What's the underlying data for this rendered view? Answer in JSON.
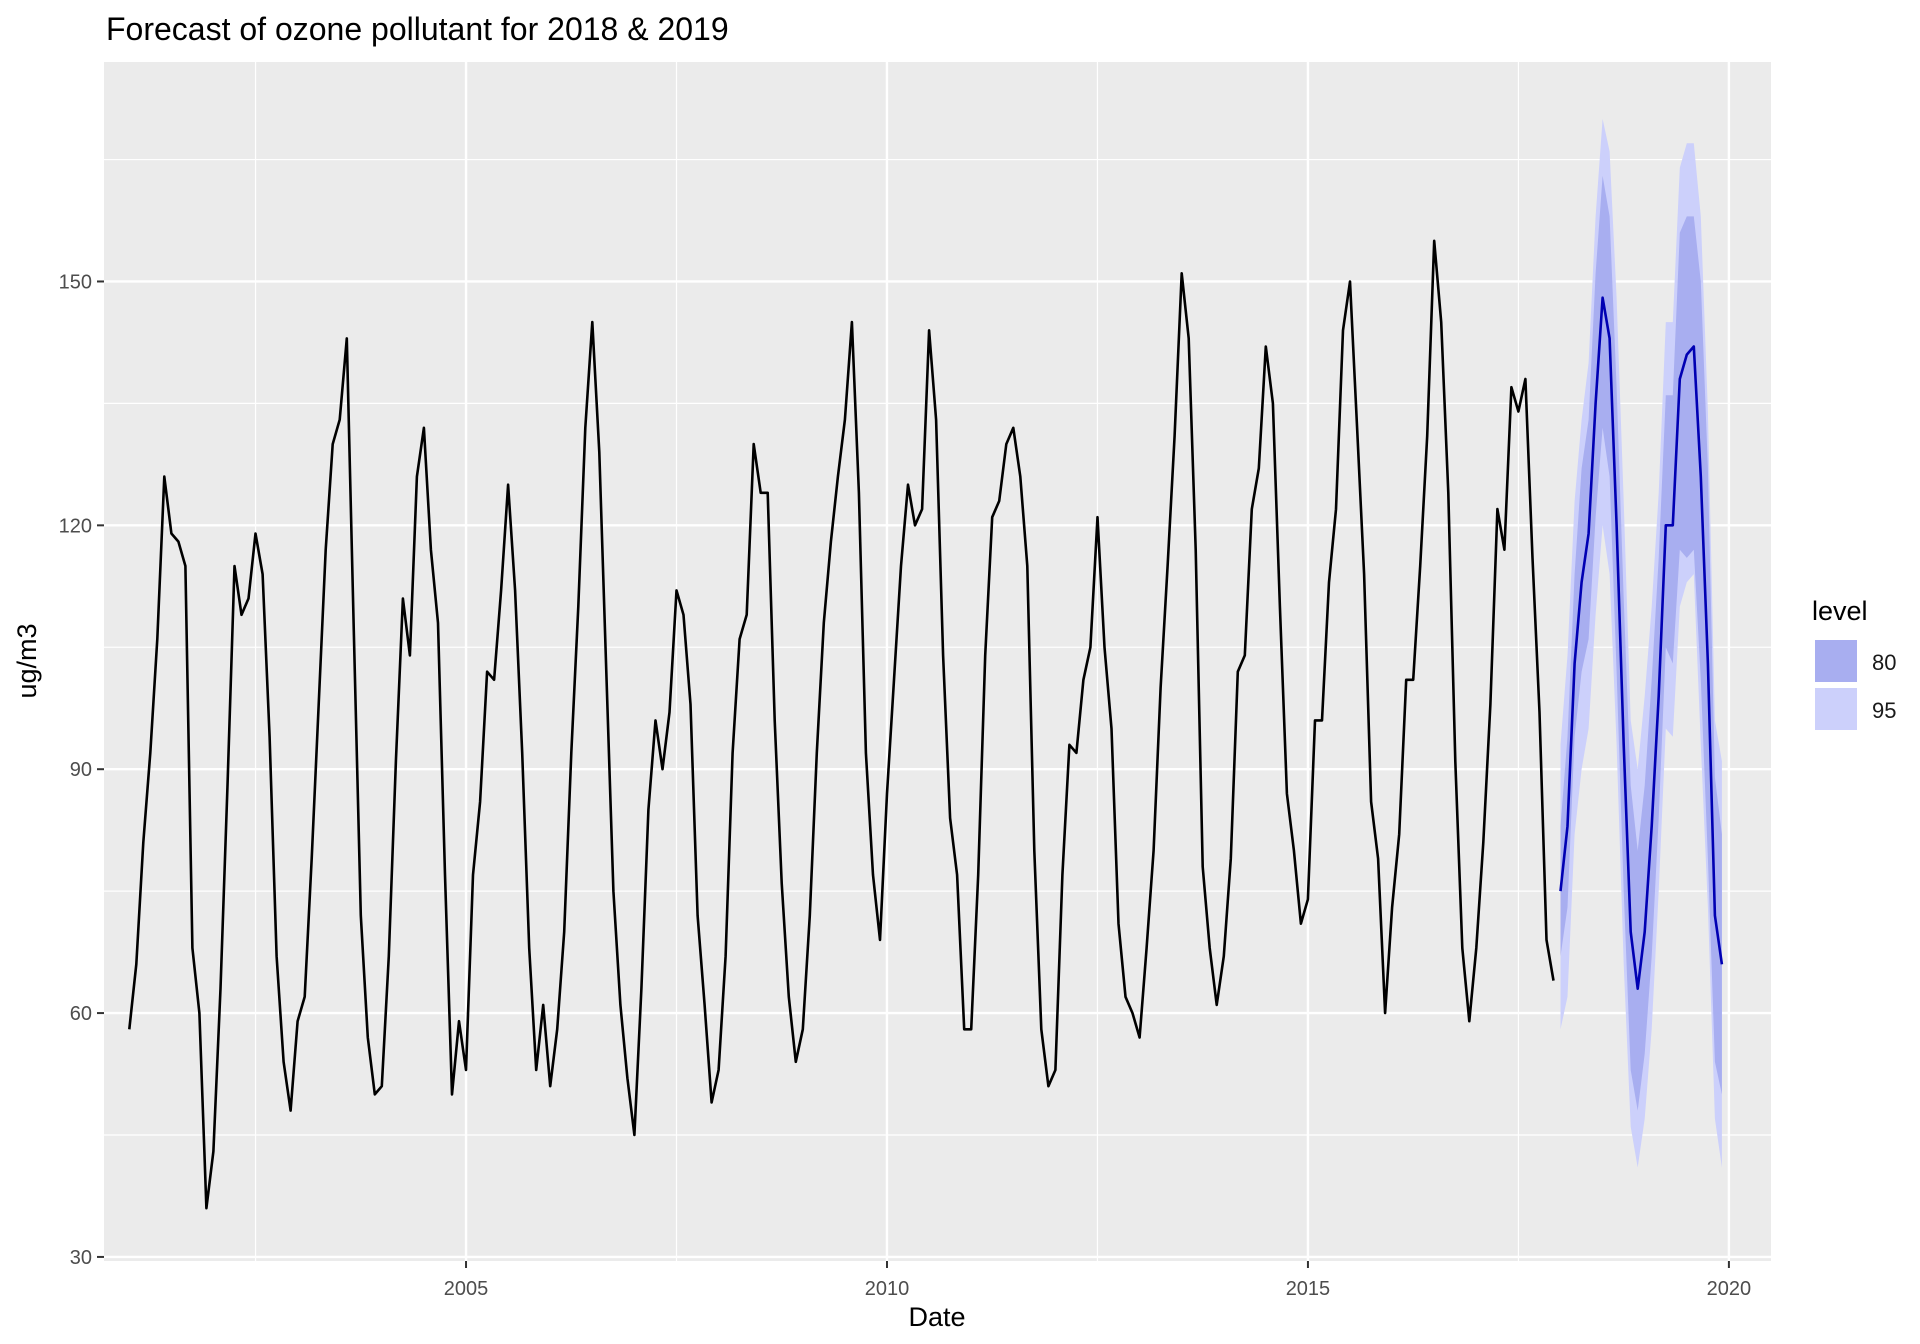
{
  "chart_data": {
    "type": "line",
    "title": "Forecast of ozone pollutant for 2018 & 2019",
    "xlabel": "Date",
    "ylabel": "ug/m3",
    "xlim": [
      2000.7,
      2020.5
    ],
    "ylim": [
      29.5,
      177
    ],
    "x_ticks": [
      2005,
      2010,
      2015,
      2020
    ],
    "x_tick_labels": [
      "2005",
      "2010",
      "2015",
      "2020"
    ],
    "y_ticks": [
      30,
      60,
      90,
      120,
      150
    ],
    "y_tick_labels": [
      "30",
      "60",
      "90",
      "120",
      "150"
    ],
    "grid": true,
    "legend": {
      "title": "level",
      "position": "right",
      "entries": [
        {
          "label": "80",
          "color": "#a8aef0"
        },
        {
          "label": "95",
          "color": "#ccd0fb"
        }
      ]
    },
    "colors": {
      "panel": "#ebebeb",
      "grid_major": "#ffffff",
      "history": "#000000",
      "forecast": "#0000b3",
      "band80": "#a8aef0",
      "band95": "#ccd0fb"
    },
    "history": {
      "start": "2001-01",
      "frequency": "monthly",
      "values": [
        58,
        66,
        81,
        92,
        106,
        126,
        119,
        118,
        115,
        68,
        60,
        36,
        43,
        63,
        88,
        115,
        109,
        111,
        119,
        114,
        94,
        67,
        54,
        48,
        59,
        62,
        79,
        98,
        117,
        130,
        133,
        143,
        107,
        72,
        57,
        50,
        51,
        67,
        91,
        111,
        104,
        126,
        132,
        117,
        108,
        77,
        50,
        59,
        53,
        77,
        86,
        102,
        101,
        112,
        125,
        112,
        92,
        68,
        53,
        61,
        51,
        58,
        70,
        92,
        110,
        132,
        145,
        129,
        102,
        75,
        61,
        52,
        45,
        63,
        85,
        96,
        90,
        97,
        112,
        109,
        98,
        72,
        61,
        49,
        53,
        67,
        92,
        106,
        109,
        130,
        124,
        124,
        96,
        76,
        62,
        54,
        58,
        72,
        92,
        108,
        118,
        126,
        133,
        145,
        124,
        92,
        77,
        69,
        87,
        101,
        115,
        125,
        120,
        122,
        144,
        133,
        104,
        84,
        77,
        58,
        58,
        77,
        104,
        121,
        123,
        130,
        132,
        126,
        115,
        80,
        58,
        51,
        53,
        77,
        93,
        92,
        101,
        105,
        121,
        105,
        95,
        71,
        62,
        60,
        57,
        68,
        80,
        100,
        115,
        131,
        151,
        143,
        117,
        78,
        68,
        61,
        67,
        79,
        102,
        104,
        122,
        127,
        142,
        135,
        110,
        87,
        80,
        71,
        74,
        96,
        96,
        113,
        122,
        144,
        150,
        132,
        114,
        86,
        79,
        60,
        73,
        82,
        101,
        101,
        115,
        131,
        155,
        145,
        124,
        91,
        68,
        59,
        68,
        81,
        98,
        122,
        117,
        137,
        134,
        138,
        116,
        97,
        69,
        64
      ]
    },
    "forecast": {
      "start": "2018-01",
      "frequency": "monthly",
      "mean": [
        75,
        83,
        103,
        113,
        119,
        135,
        148,
        143,
        120,
        93,
        70,
        63,
        70,
        83,
        99,
        120,
        120,
        138,
        141,
        142,
        126,
        103,
        72,
        66
      ],
      "lo80": [
        67,
        73,
        94,
        102,
        106,
        121,
        132,
        126,
        102,
        75,
        53,
        48,
        55,
        67,
        84,
        105,
        103,
        117,
        116,
        117,
        101,
        79,
        54,
        50
      ],
      "hi80": [
        83,
        94,
        114,
        127,
        133,
        151,
        163,
        158,
        137,
        111,
        88,
        80,
        88,
        101,
        116,
        136,
        136,
        156,
        158,
        158,
        150,
        127,
        89,
        82
      ],
      "lo95": [
        58,
        62,
        82,
        90,
        95,
        109,
        120,
        114,
        93,
        66,
        46,
        41,
        47,
        58,
        75,
        95,
        94,
        110,
        113,
        114,
        93,
        73,
        47,
        41
      ],
      "hi95": [
        93,
        104,
        123,
        133,
        140,
        158,
        170,
        166,
        148,
        123,
        96,
        90,
        99,
        110,
        124,
        145,
        145,
        164,
        167,
        167,
        158,
        134,
        96,
        91
      ]
    }
  }
}
